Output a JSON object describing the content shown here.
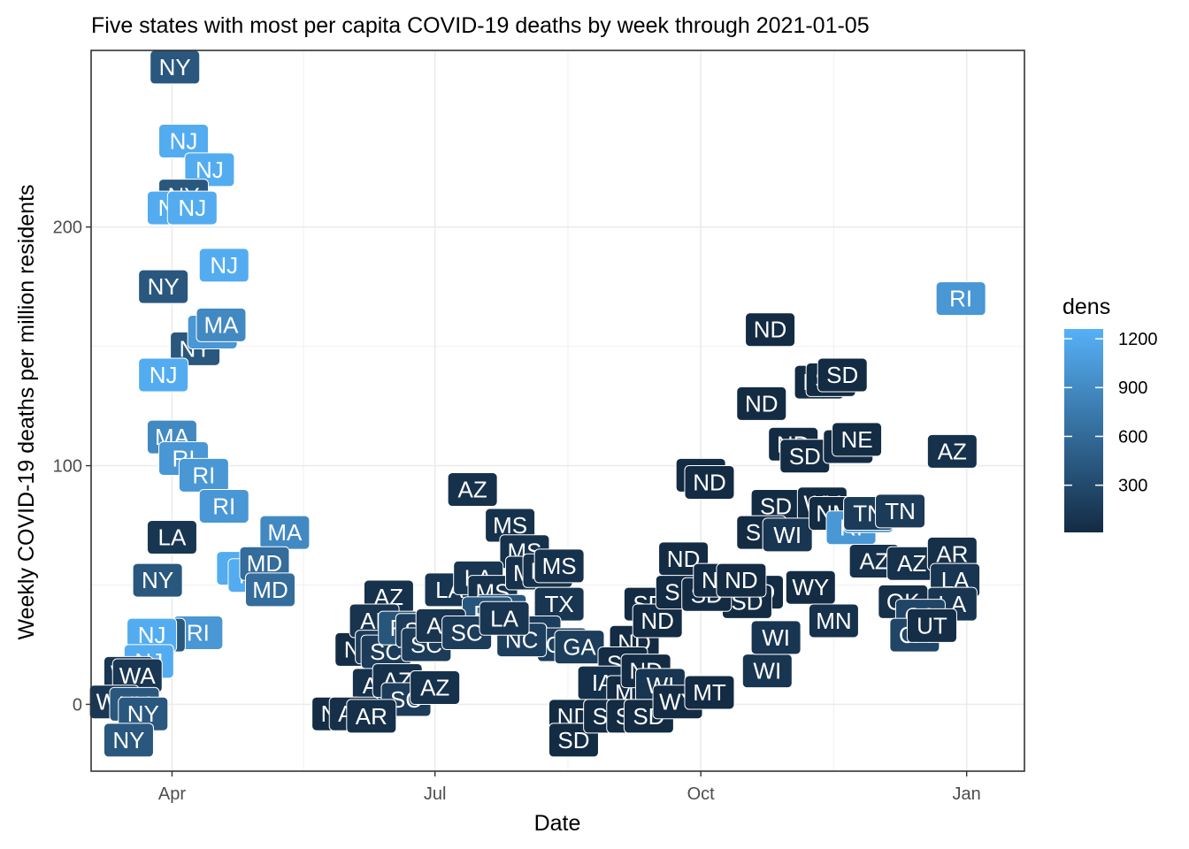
{
  "chart_data": {
    "type": "scatter",
    "title": "Five states with most per capita COVID-19 deaths by week through 2021-01-05",
    "xlabel": "Date",
    "ylabel": "Weekly COVID-19 deaths per million residents",
    "x_ticks": [
      {
        "label": "Apr",
        "date": "2020-04-01"
      },
      {
        "label": "Jul",
        "date": "2020-07-01"
      },
      {
        "label": "Oct",
        "date": "2020-10-01"
      },
      {
        "label": "Jan",
        "date": "2021-01-01"
      }
    ],
    "xlim": [
      "2020-03-04",
      "2021-01-21"
    ],
    "y_ticks": [
      0,
      100,
      200
    ],
    "ylim": [
      -28,
      274
    ],
    "grid": true,
    "legend": {
      "title": "dens",
      "position": "right",
      "ticks": [
        300,
        600,
        900,
        1200
      ],
      "range": [
        10,
        1260
      ],
      "color_low": "#132B43",
      "color_high": "#56B1F7"
    },
    "points": [
      {
        "label": "NY",
        "date": "2020-04-02",
        "y": 267,
        "dens": 420
      },
      {
        "label": "NJ",
        "date": "2020-04-05",
        "y": 236,
        "dens": 1210
      },
      {
        "label": "NJ",
        "date": "2020-04-14",
        "y": 224,
        "dens": 1210
      },
      {
        "label": "NY",
        "date": "2020-04-05",
        "y": 213,
        "dens": 420
      },
      {
        "label": "NJ",
        "date": "2020-04-01",
        "y": 208,
        "dens": 1210
      },
      {
        "label": "NJ",
        "date": "2020-04-08",
        "y": 208,
        "dens": 1210
      },
      {
        "label": "NJ",
        "date": "2020-04-19",
        "y": 184,
        "dens": 1210
      },
      {
        "label": "NY",
        "date": "2020-03-29",
        "y": 175,
        "dens": 420
      },
      {
        "label": "NY",
        "date": "2020-04-09",
        "y": 149,
        "dens": 420
      },
      {
        "label": "RI",
        "date": "2020-04-15",
        "y": 156,
        "dens": 1020
      },
      {
        "label": "MA",
        "date": "2020-04-18",
        "y": 159,
        "dens": 890
      },
      {
        "label": "NJ",
        "date": "2020-03-29",
        "y": 138,
        "dens": 1210
      },
      {
        "label": "MA",
        "date": "2020-04-01",
        "y": 112,
        "dens": 890
      },
      {
        "label": "RI",
        "date": "2020-04-05",
        "y": 103,
        "dens": 1020
      },
      {
        "label": "RI",
        "date": "2020-04-12",
        "y": 96,
        "dens": 1020
      },
      {
        "label": "RI",
        "date": "2020-04-19",
        "y": 83,
        "dens": 1020
      },
      {
        "label": "MA",
        "date": "2020-05-10",
        "y": 72,
        "dens": 890
      },
      {
        "label": "LA",
        "date": "2020-04-01",
        "y": 70,
        "dens": 108
      },
      {
        "label": "NJ",
        "date": "2020-04-25",
        "y": 57,
        "dens": 1210
      },
      {
        "label": "NJ",
        "date": "2020-04-29",
        "y": 54,
        "dens": 1210
      },
      {
        "label": "MD",
        "date": "2020-05-03",
        "y": 59,
        "dens": 620
      },
      {
        "label": "MD",
        "date": "2020-05-05",
        "y": 48,
        "dens": 620
      },
      {
        "label": "NY",
        "date": "2020-03-27",
        "y": 52,
        "dens": 420
      },
      {
        "label": "RI",
        "date": "2020-04-10",
        "y": 30,
        "dens": 1020
      },
      {
        "label": "NY",
        "date": "2020-03-28",
        "y": 29,
        "dens": 420
      },
      {
        "label": "NJ",
        "date": "2020-03-25",
        "y": 29,
        "dens": 1210
      },
      {
        "label": "NJ",
        "date": "2020-03-24",
        "y": 18,
        "dens": 1210
      },
      {
        "label": "WA",
        "date": "2020-03-17",
        "y": 13,
        "dens": 117
      },
      {
        "label": "WA",
        "date": "2020-03-20",
        "y": 12,
        "dens": 117
      },
      {
        "label": "WA",
        "date": "2020-03-12",
        "y": 1,
        "dens": 117
      },
      {
        "label": "NY",
        "date": "2020-03-19",
        "y": 0,
        "dens": 420
      },
      {
        "label": "NY",
        "date": "2020-03-22",
        "y": -4,
        "dens": 420
      },
      {
        "label": "NY",
        "date": "2020-03-17",
        "y": -15,
        "dens": 420
      },
      {
        "label": "AZ",
        "date": "2020-06-15",
        "y": 45,
        "dens": 64
      },
      {
        "label": "NE",
        "date": "2020-06-05",
        "y": 23,
        "dens": 25
      },
      {
        "label": "AL",
        "date": "2020-06-10",
        "y": 35,
        "dens": 96
      },
      {
        "label": "SC",
        "date": "2020-06-12",
        "y": 24,
        "dens": 170
      },
      {
        "label": "SC",
        "date": "2020-06-14",
        "y": 22,
        "dens": 170
      },
      {
        "label": "FL",
        "date": "2020-06-20",
        "y": 32,
        "dens": 400
      },
      {
        "label": "SC",
        "date": "2020-06-26",
        "y": 31,
        "dens": 170
      },
      {
        "label": "SC",
        "date": "2020-06-28",
        "y": 25,
        "dens": 170
      },
      {
        "label": "AZ",
        "date": "2020-06-11",
        "y": 8,
        "dens": 64
      },
      {
        "label": "AZ",
        "date": "2020-06-18",
        "y": 10,
        "dens": 64
      },
      {
        "label": "SC",
        "date": "2020-06-21",
        "y": 2,
        "dens": 170
      },
      {
        "label": "AZ",
        "date": "2020-07-01",
        "y": 7,
        "dens": 64
      },
      {
        "label": "NE",
        "date": "2020-05-28",
        "y": -4,
        "dens": 25
      },
      {
        "label": "AR",
        "date": "2020-06-03",
        "y": -4,
        "dens": 58
      },
      {
        "label": "AR",
        "date": "2020-06-09",
        "y": -5,
        "dens": 58
      },
      {
        "label": "AZ",
        "date": "2020-07-14",
        "y": 90,
        "dens": 64
      },
      {
        "label": "MS",
        "date": "2020-07-27",
        "y": 75,
        "dens": 64
      },
      {
        "label": "MS",
        "date": "2020-08-01",
        "y": 64,
        "dens": 64
      },
      {
        "label": "LA",
        "date": "2020-07-06",
        "y": 48,
        "dens": 108
      },
      {
        "label": "LA",
        "date": "2020-07-16",
        "y": 53,
        "dens": 108
      },
      {
        "label": "MS",
        "date": "2020-07-21",
        "y": 47,
        "dens": 64
      },
      {
        "label": "MS",
        "date": "2020-08-03",
        "y": 55,
        "dens": 64
      },
      {
        "label": "MS",
        "date": "2020-08-09",
        "y": 56,
        "dens": 64
      },
      {
        "label": "MS",
        "date": "2020-08-13",
        "y": 58,
        "dens": 64
      },
      {
        "label": "TX",
        "date": "2020-08-13",
        "y": 42,
        "dens": 110
      },
      {
        "label": "FL",
        "date": "2020-07-24",
        "y": 39,
        "dens": 400
      },
      {
        "label": "FL",
        "date": "2020-07-19",
        "y": 38,
        "dens": 400
      },
      {
        "label": "AL",
        "date": "2020-07-03",
        "y": 33,
        "dens": 96
      },
      {
        "label": "SC",
        "date": "2020-07-12",
        "y": 30,
        "dens": 170
      },
      {
        "label": "GA",
        "date": "2020-08-05",
        "y": 30,
        "dens": 180
      },
      {
        "label": "GA",
        "date": "2020-08-14",
        "y": 25,
        "dens": 180
      },
      {
        "label": "NC",
        "date": "2020-07-31",
        "y": 27,
        "dens": 200
      },
      {
        "label": "GA",
        "date": "2020-08-20",
        "y": 24,
        "dens": 180
      },
      {
        "label": "LA",
        "date": "2020-07-25",
        "y": 36,
        "dens": 108
      },
      {
        "label": "SD",
        "date": "2020-09-13",
        "y": 42,
        "dens": 11
      },
      {
        "label": "ND",
        "date": "2020-09-08",
        "y": 26,
        "dens": 11
      },
      {
        "label": "ND",
        "date": "2020-09-16",
        "y": 35,
        "dens": 11
      },
      {
        "label": "ND",
        "date": "2020-09-25",
        "y": 61,
        "dens": 11
      },
      {
        "label": "SD",
        "date": "2020-09-24",
        "y": 47,
        "dens": 11
      },
      {
        "label": "SD",
        "date": "2020-09-04",
        "y": 17,
        "dens": 11
      },
      {
        "label": "IA",
        "date": "2020-08-28",
        "y": 9,
        "dens": 56
      },
      {
        "label": "MT",
        "date": "2020-09-07",
        "y": 5,
        "dens": 7
      },
      {
        "label": "ND",
        "date": "2020-09-12",
        "y": 14,
        "dens": 11
      },
      {
        "label": "WI",
        "date": "2020-09-17",
        "y": 8,
        "dens": 106
      },
      {
        "label": "ND",
        "date": "2020-08-18",
        "y": -5,
        "dens": 11
      },
      {
        "label": "SD",
        "date": "2020-08-18",
        "y": -15,
        "dens": 11
      },
      {
        "label": "SD",
        "date": "2020-08-30",
        "y": -5,
        "dens": 11
      },
      {
        "label": "SD",
        "date": "2020-09-07",
        "y": -5,
        "dens": 11
      },
      {
        "label": "SD",
        "date": "2020-09-13",
        "y": -5,
        "dens": 11
      },
      {
        "label": "WY",
        "date": "2020-09-23",
        "y": 1,
        "dens": 6
      },
      {
        "label": "MT",
        "date": "2020-10-04",
        "y": 5,
        "dens": 7
      },
      {
        "label": "WI",
        "date": "2020-10-24",
        "y": 14,
        "dens": 106
      },
      {
        "label": "WI",
        "date": "2020-10-27",
        "y": 28,
        "dens": 106
      },
      {
        "label": "ND",
        "date": "2020-10-21",
        "y": 47,
        "dens": 11
      },
      {
        "label": "SD",
        "date": "2020-10-17",
        "y": 43,
        "dens": 11
      },
      {
        "label": "SD",
        "date": "2020-10-03",
        "y": 46,
        "dens": 11
      },
      {
        "label": "ND",
        "date": "2020-10-07",
        "y": 52,
        "dens": 11
      },
      {
        "label": "ND",
        "date": "2020-10-15",
        "y": 52,
        "dens": 11
      },
      {
        "label": "ND",
        "date": "2020-10-25",
        "y": 157,
        "dens": 11
      },
      {
        "label": "ND",
        "date": "2020-11-11",
        "y": 135,
        "dens": 11
      },
      {
        "label": "ND",
        "date": "2020-10-22",
        "y": 126,
        "dens": 11
      },
      {
        "label": "SD",
        "date": "2020-11-15",
        "y": 136,
        "dens": 11
      },
      {
        "label": "SD",
        "date": "2020-11-19",
        "y": 138,
        "dens": 11
      },
      {
        "label": "ND",
        "date": "2020-11-02",
        "y": 109,
        "dens": 11
      },
      {
        "label": "SD",
        "date": "2020-11-06",
        "y": 104,
        "dens": 11
      },
      {
        "label": "NE",
        "date": "2020-11-21",
        "y": 108,
        "dens": 25
      },
      {
        "label": "NE",
        "date": "2020-11-24",
        "y": 111,
        "dens": 25
      },
      {
        "label": "ND",
        "date": "2020-10-01",
        "y": 96,
        "dens": 11
      },
      {
        "label": "ND",
        "date": "2020-10-04",
        "y": 93,
        "dens": 11
      },
      {
        "label": "SD",
        "date": "2020-10-27",
        "y": 83,
        "dens": 11
      },
      {
        "label": "WY",
        "date": "2020-11-12",
        "y": 84,
        "dens": 6
      },
      {
        "label": "SD",
        "date": "2020-10-22",
        "y": 72,
        "dens": 11
      },
      {
        "label": "WI",
        "date": "2020-10-31",
        "y": 71,
        "dens": 106
      },
      {
        "label": "NM",
        "date": "2020-11-16",
        "y": 80,
        "dens": 17
      },
      {
        "label": "WY",
        "date": "2020-11-08",
        "y": 49,
        "dens": 6
      },
      {
        "label": "MN",
        "date": "2020-11-16",
        "y": 35,
        "dens": 70
      },
      {
        "label": "RI",
        "date": "2020-11-22",
        "y": 74,
        "dens": 1020
      },
      {
        "label": "RI",
        "date": "2020-11-28",
        "y": 79,
        "dens": 1020
      },
      {
        "label": "TN",
        "date": "2020-11-28",
        "y": 80,
        "dens": 160
      },
      {
        "label": "TN",
        "date": "2020-12-09",
        "y": 81,
        "dens": 160
      },
      {
        "label": "AZ",
        "date": "2020-11-30",
        "y": 60,
        "dens": 64
      },
      {
        "label": "AZ",
        "date": "2020-12-13",
        "y": 59,
        "dens": 64
      },
      {
        "label": "AZ",
        "date": "2020-12-27",
        "y": 106,
        "dens": 64
      },
      {
        "label": "RI",
        "date": "2020-12-30",
        "y": 170,
        "dens": 1020
      },
      {
        "label": "AR",
        "date": "2020-12-27",
        "y": 63,
        "dens": 58
      },
      {
        "label": "LA",
        "date": "2020-12-28",
        "y": 52,
        "dens": 108
      },
      {
        "label": "LA",
        "date": "2020-12-27",
        "y": 42,
        "dens": 108
      },
      {
        "label": "OK",
        "date": "2020-12-10",
        "y": 43,
        "dens": 57
      },
      {
        "label": "CA",
        "date": "2020-12-16",
        "y": 37,
        "dens": 254
      },
      {
        "label": "CA",
        "date": "2020-12-14",
        "y": 29,
        "dens": 254
      },
      {
        "label": "UT",
        "date": "2020-12-20",
        "y": 33,
        "dens": 39
      }
    ]
  }
}
